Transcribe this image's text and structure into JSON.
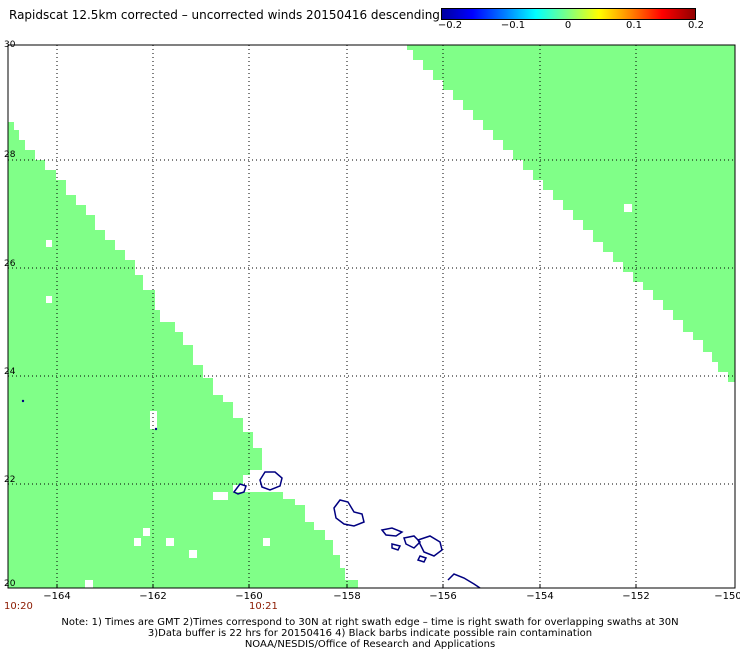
{
  "title": "Rapidscat 12.5km corrected – uncorrected winds 20150416 descending",
  "colorbar": {
    "ticks": [
      {
        "value": -0.2,
        "label": "−0.2"
      },
      {
        "value": -0.1,
        "label": "−0.1"
      },
      {
        "value": 0,
        "label": "0"
      },
      {
        "value": 0.1,
        "label": "0.1"
      },
      {
        "value": 0.2,
        "label": "0.2"
      }
    ],
    "colors": [
      "#0000a0",
      "#0000ff",
      "#00ffff",
      "#80ff80",
      "#ffff00",
      "#ff0000",
      "#900000"
    ]
  },
  "map": {
    "lon_range": [
      -165,
      -150
    ],
    "lat_range": [
      20,
      30
    ],
    "lon_labels": [
      "−164",
      "−162",
      "−160",
      "−158",
      "−156",
      "−154",
      "−152",
      "−150"
    ],
    "lat_labels": [
      "30",
      "28",
      "26",
      "24",
      "22",
      "20"
    ],
    "swath_color": "#80ff88",
    "coast_color": "#000080",
    "times": [
      "10:20",
      "10:21"
    ]
  },
  "notes": [
    "Note: 1) Times are GMT 2)Times correspond to 30N at right swath edge – time is right swath for overlapping swaths at 30N",
    "3)Data buffer is 22 hrs for 20150416 4) Black barbs indicate possible rain contamination",
    "NOAA/NESDIS/Office of Research and Applications"
  ]
}
